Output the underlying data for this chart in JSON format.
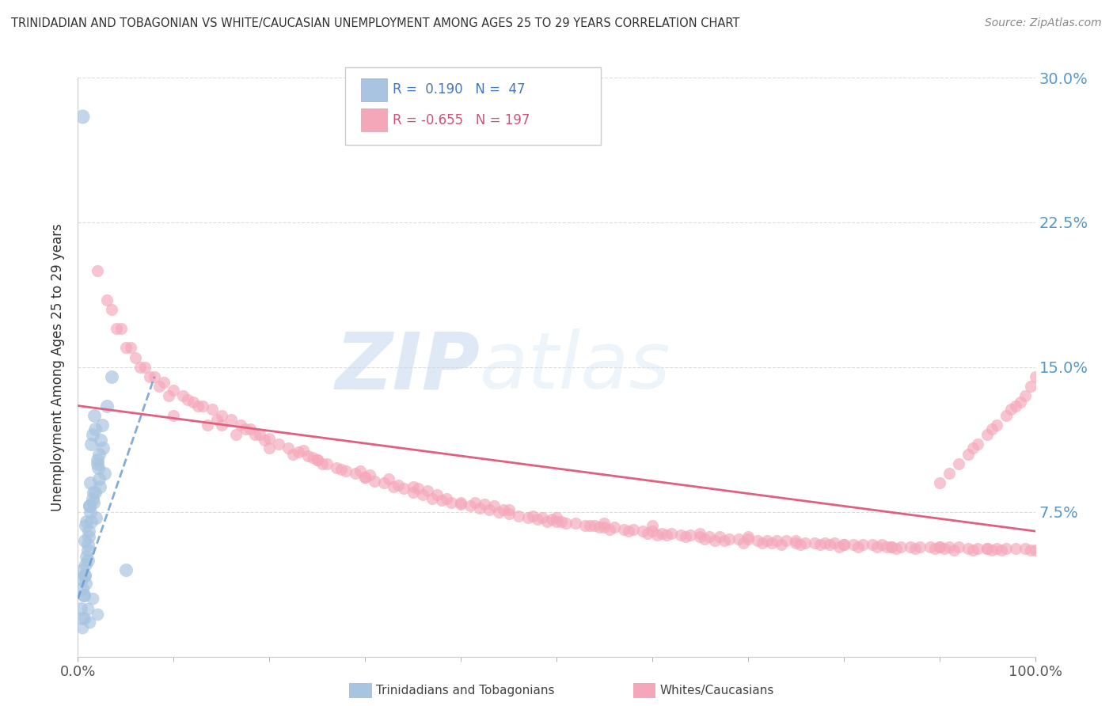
{
  "title": "TRINIDADIAN AND TOBAGONIAN VS WHITE/CAUCASIAN UNEMPLOYMENT AMONG AGES 25 TO 29 YEARS CORRELATION CHART",
  "source": "Source: ZipAtlas.com",
  "ylabel": "Unemployment Among Ages 25 to 29 years",
  "xlim": [
    0,
    100
  ],
  "ylim": [
    0,
    30
  ],
  "yticks": [
    0,
    7.5,
    15.0,
    22.5,
    30.0
  ],
  "ytick_labels": [
    "",
    "7.5%",
    "15.0%",
    "22.5%",
    "30.0%"
  ],
  "xtick_labels": [
    "0.0%",
    "100.0%"
  ],
  "legend_R_blue": "0.190",
  "legend_N_blue": "47",
  "legend_R_pink": "-0.655",
  "legend_N_pink": "197",
  "color_blue": "#a8c4e0",
  "color_pink": "#f4a7b9",
  "color_blue_line": "#6699cc",
  "color_pink_line": "#e06080",
  "background_color": "#ffffff",
  "grid_color": "#dddddd",
  "watermark_zip": "ZIP",
  "watermark_atlas": "atlas",
  "blue_scatter_x": [
    0.3,
    0.5,
    0.5,
    0.6,
    0.7,
    0.7,
    0.8,
    0.8,
    0.9,
    1.0,
    1.0,
    1.1,
    1.2,
    1.3,
    1.3,
    1.4,
    1.5,
    1.6,
    1.7,
    1.8,
    1.9,
    2.0,
    2.1,
    2.2,
    2.3,
    2.4,
    2.5,
    2.6,
    2.8,
    3.0,
    3.5,
    5.0,
    0.4,
    0.6,
    0.9,
    1.1,
    1.4,
    1.6,
    2.0,
    0.5,
    0.7,
    1.0,
    1.2,
    1.8,
    2.2,
    0.8,
    1.5
  ],
  "blue_scatter_y": [
    2.5,
    4.5,
    2.0,
    3.2,
    6.0,
    4.2,
    3.8,
    4.8,
    7.0,
    5.0,
    5.8,
    6.5,
    7.8,
    9.0,
    7.5,
    11.0,
    8.2,
    8.0,
    12.5,
    8.5,
    7.2,
    10.2,
    9.8,
    10.5,
    8.8,
    11.2,
    12.0,
    10.8,
    9.5,
    13.0,
    14.5,
    4.5,
    4.0,
    3.2,
    5.2,
    6.2,
    7.0,
    8.5,
    10.0,
    3.5,
    4.2,
    5.5,
    7.8,
    11.8,
    9.2,
    6.8,
    11.5
  ],
  "blue_outlier_x": [
    0.5
  ],
  "blue_outlier_y": [
    28.0
  ],
  "blue_low_x": [
    0.5,
    0.7,
    1.0,
    1.2,
    1.5,
    2.0
  ],
  "blue_low_y": [
    1.5,
    2.0,
    2.5,
    1.8,
    3.0,
    2.2
  ],
  "pink_scatter_x": [
    2.0,
    3.0,
    4.0,
    5.0,
    6.0,
    7.0,
    8.0,
    9.0,
    10.0,
    11.0,
    12.0,
    13.0,
    14.0,
    15.0,
    16.0,
    17.0,
    18.0,
    19.0,
    20.0,
    21.0,
    22.0,
    23.0,
    24.0,
    25.0,
    26.0,
    27.0,
    28.0,
    29.0,
    30.0,
    31.0,
    32.0,
    33.0,
    34.0,
    35.0,
    36.0,
    37.0,
    38.0,
    39.0,
    40.0,
    41.0,
    42.0,
    43.0,
    44.0,
    45.0,
    46.0,
    47.0,
    48.0,
    49.0,
    50.0,
    51.0,
    52.0,
    53.0,
    54.0,
    55.0,
    56.0,
    57.0,
    58.0,
    59.0,
    60.0,
    61.0,
    62.0,
    63.0,
    64.0,
    65.0,
    66.0,
    67.0,
    68.0,
    69.0,
    70.0,
    71.0,
    72.0,
    73.0,
    74.0,
    75.0,
    76.0,
    77.0,
    78.0,
    79.0,
    80.0,
    81.0,
    82.0,
    83.0,
    84.0,
    85.0,
    86.0,
    87.0,
    88.0,
    89.0,
    90.0,
    91.0,
    92.0,
    93.0,
    94.0,
    95.0,
    96.0,
    97.0,
    98.0,
    99.0,
    100.0,
    3.5,
    6.5,
    9.5,
    13.5,
    16.5,
    22.5,
    27.5,
    33.5,
    38.5,
    44.5,
    50.5,
    55.5,
    61.5,
    67.5,
    73.5,
    79.5,
    85.5,
    91.5,
    4.5,
    8.5,
    14.5,
    19.5,
    24.5,
    30.5,
    36.5,
    42.5,
    48.5,
    54.5,
    60.5,
    66.5,
    72.5,
    78.5,
    84.5,
    90.5,
    96.5,
    5.5,
    11.5,
    17.5,
    23.5,
    29.5,
    35.5,
    41.5,
    47.5,
    53.5,
    59.5,
    65.5,
    71.5,
    77.5,
    83.5,
    89.5,
    95.5,
    7.5,
    12.5,
    18.5,
    25.5,
    32.5,
    37.5,
    43.5,
    49.5,
    57.5,
    63.5,
    69.5,
    75.5,
    81.5,
    87.5,
    93.5,
    99.5,
    20.0,
    40.0,
    60.0,
    80.0,
    10.0,
    30.0,
    50.0,
    70.0,
    90.0,
    25.0,
    45.0,
    65.0,
    85.0,
    15.0,
    35.0,
    55.0,
    75.0,
    95.0
  ],
  "pink_scatter_y": [
    20.0,
    18.5,
    17.0,
    16.0,
    15.5,
    15.0,
    14.5,
    14.2,
    13.8,
    13.5,
    13.2,
    13.0,
    12.8,
    12.5,
    12.3,
    12.0,
    11.8,
    11.5,
    11.3,
    11.0,
    10.8,
    10.6,
    10.4,
    10.2,
    10.0,
    9.8,
    9.6,
    9.5,
    9.3,
    9.1,
    9.0,
    8.8,
    8.7,
    8.5,
    8.4,
    8.2,
    8.1,
    8.0,
    7.9,
    7.8,
    7.7,
    7.6,
    7.5,
    7.4,
    7.3,
    7.2,
    7.1,
    7.0,
    7.0,
    6.9,
    6.9,
    6.8,
    6.8,
    6.7,
    6.7,
    6.6,
    6.6,
    6.5,
    6.5,
    6.4,
    6.4,
    6.3,
    6.3,
    6.2,
    6.2,
    6.2,
    6.1,
    6.1,
    6.1,
    6.0,
    6.0,
    6.0,
    6.0,
    5.9,
    5.9,
    5.9,
    5.9,
    5.9,
    5.8,
    5.8,
    5.8,
    5.8,
    5.8,
    5.7,
    5.7,
    5.7,
    5.7,
    5.7,
    5.7,
    5.7,
    5.7,
    5.6,
    5.6,
    5.6,
    5.6,
    5.6,
    5.6,
    5.6,
    5.5,
    18.0,
    15.0,
    13.5,
    12.0,
    11.5,
    10.5,
    9.7,
    8.9,
    8.2,
    7.6,
    7.0,
    6.6,
    6.3,
    6.0,
    5.8,
    5.7,
    5.6,
    5.5,
    17.0,
    14.0,
    12.3,
    11.2,
    10.3,
    9.4,
    8.6,
    7.9,
    7.2,
    6.7,
    6.3,
    6.0,
    5.9,
    5.8,
    5.7,
    5.6,
    5.5,
    16.0,
    13.3,
    11.8,
    10.7,
    9.6,
    8.7,
    8.0,
    7.3,
    6.8,
    6.4,
    6.1,
    5.9,
    5.8,
    5.7,
    5.6,
    5.5,
    14.5,
    13.0,
    11.5,
    10.0,
    9.2,
    8.4,
    7.8,
    7.1,
    6.5,
    6.2,
    5.9,
    5.8,
    5.7,
    5.6,
    5.5,
    5.5,
    10.8,
    8.0,
    6.8,
    5.8,
    12.5,
    9.3,
    7.2,
    6.2,
    5.7,
    10.2,
    7.6,
    6.4,
    5.7,
    12.0,
    8.8,
    6.9,
    6.0,
    5.6
  ],
  "pink_high_right_x": [
    90.0,
    92.0,
    93.0,
    94.0,
    95.0,
    96.0,
    97.0,
    98.0,
    99.0,
    100.0,
    91.0,
    93.5,
    95.5,
    97.5,
    98.5,
    99.5
  ],
  "pink_high_right_y": [
    9.0,
    10.0,
    10.5,
    11.0,
    11.5,
    12.0,
    12.5,
    13.0,
    13.5,
    14.5,
    9.5,
    10.8,
    11.8,
    12.8,
    13.2,
    14.0
  ],
  "blue_line_x0": 0,
  "blue_line_y0": 3.0,
  "blue_line_x1": 8,
  "blue_line_y1": 14.5,
  "pink_line_x0": 0,
  "pink_line_y0": 13.0,
  "pink_line_x1": 100,
  "pink_line_y1": 6.5
}
